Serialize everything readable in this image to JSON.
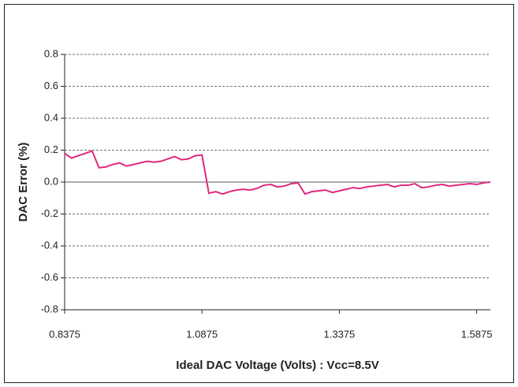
{
  "chart_data": {
    "type": "line",
    "xlabel": "Ideal DAC Voltage (Volts) : Vcc=8.5V",
    "ylabel": "DAC Error (%)",
    "x": [
      0.8375,
      0.85,
      0.8625,
      0.875,
      0.8875,
      0.9,
      0.9125,
      0.925,
      0.9375,
      0.95,
      0.9625,
      0.975,
      0.9875,
      1.0,
      1.0125,
      1.025,
      1.0375,
      1.05,
      1.0625,
      1.075,
      1.0875,
      1.1,
      1.1125,
      1.125,
      1.1375,
      1.15,
      1.1625,
      1.175,
      1.1875,
      1.2,
      1.2125,
      1.225,
      1.2375,
      1.25,
      1.2625,
      1.275,
      1.2875,
      1.3,
      1.3125,
      1.325,
      1.3375,
      1.35,
      1.3625,
      1.375,
      1.3875,
      1.4,
      1.4125,
      1.425,
      1.4375,
      1.45,
      1.4625,
      1.475,
      1.4875,
      1.5,
      1.5125,
      1.525,
      1.5375,
      1.55,
      1.5625,
      1.575,
      1.5875,
      1.6,
      1.6125
    ],
    "series": [
      {
        "color": "#e0287f",
        "values": [
          0.18,
          0.15,
          0.165,
          0.18,
          0.195,
          0.09,
          0.095,
          0.11,
          0.12,
          0.1,
          0.11,
          0.12,
          0.13,
          0.125,
          0.13,
          0.145,
          0.16,
          0.14,
          0.145,
          0.165,
          0.17,
          -0.07,
          -0.06,
          -0.075,
          -0.06,
          -0.05,
          -0.045,
          -0.05,
          -0.04,
          -0.02,
          -0.015,
          -0.03,
          -0.025,
          -0.01,
          -0.005,
          -0.075,
          -0.06,
          -0.055,
          -0.05,
          -0.065,
          -0.055,
          -0.045,
          -0.035,
          -0.04,
          -0.03,
          -0.025,
          -0.02,
          -0.015,
          -0.03,
          -0.02,
          -0.02,
          -0.01,
          -0.035,
          -0.03,
          -0.02,
          -0.015,
          -0.025,
          -0.02,
          -0.015,
          -0.01,
          -0.015,
          -0.005,
          0.0
        ]
      }
    ],
    "xlim": [
      0.8375,
      1.6125
    ],
    "xticks": [
      0.8375,
      1.0875,
      1.3375,
      1.5875
    ],
    "ylim": [
      -0.8,
      0.8
    ],
    "yticks": [
      0.8,
      0.6,
      0.4,
      0.2,
      {
        "value": 0,
        "label": "0.0"
      },
      -0.2,
      -0.4,
      -0.6,
      -0.8
    ],
    "grid": true
  }
}
